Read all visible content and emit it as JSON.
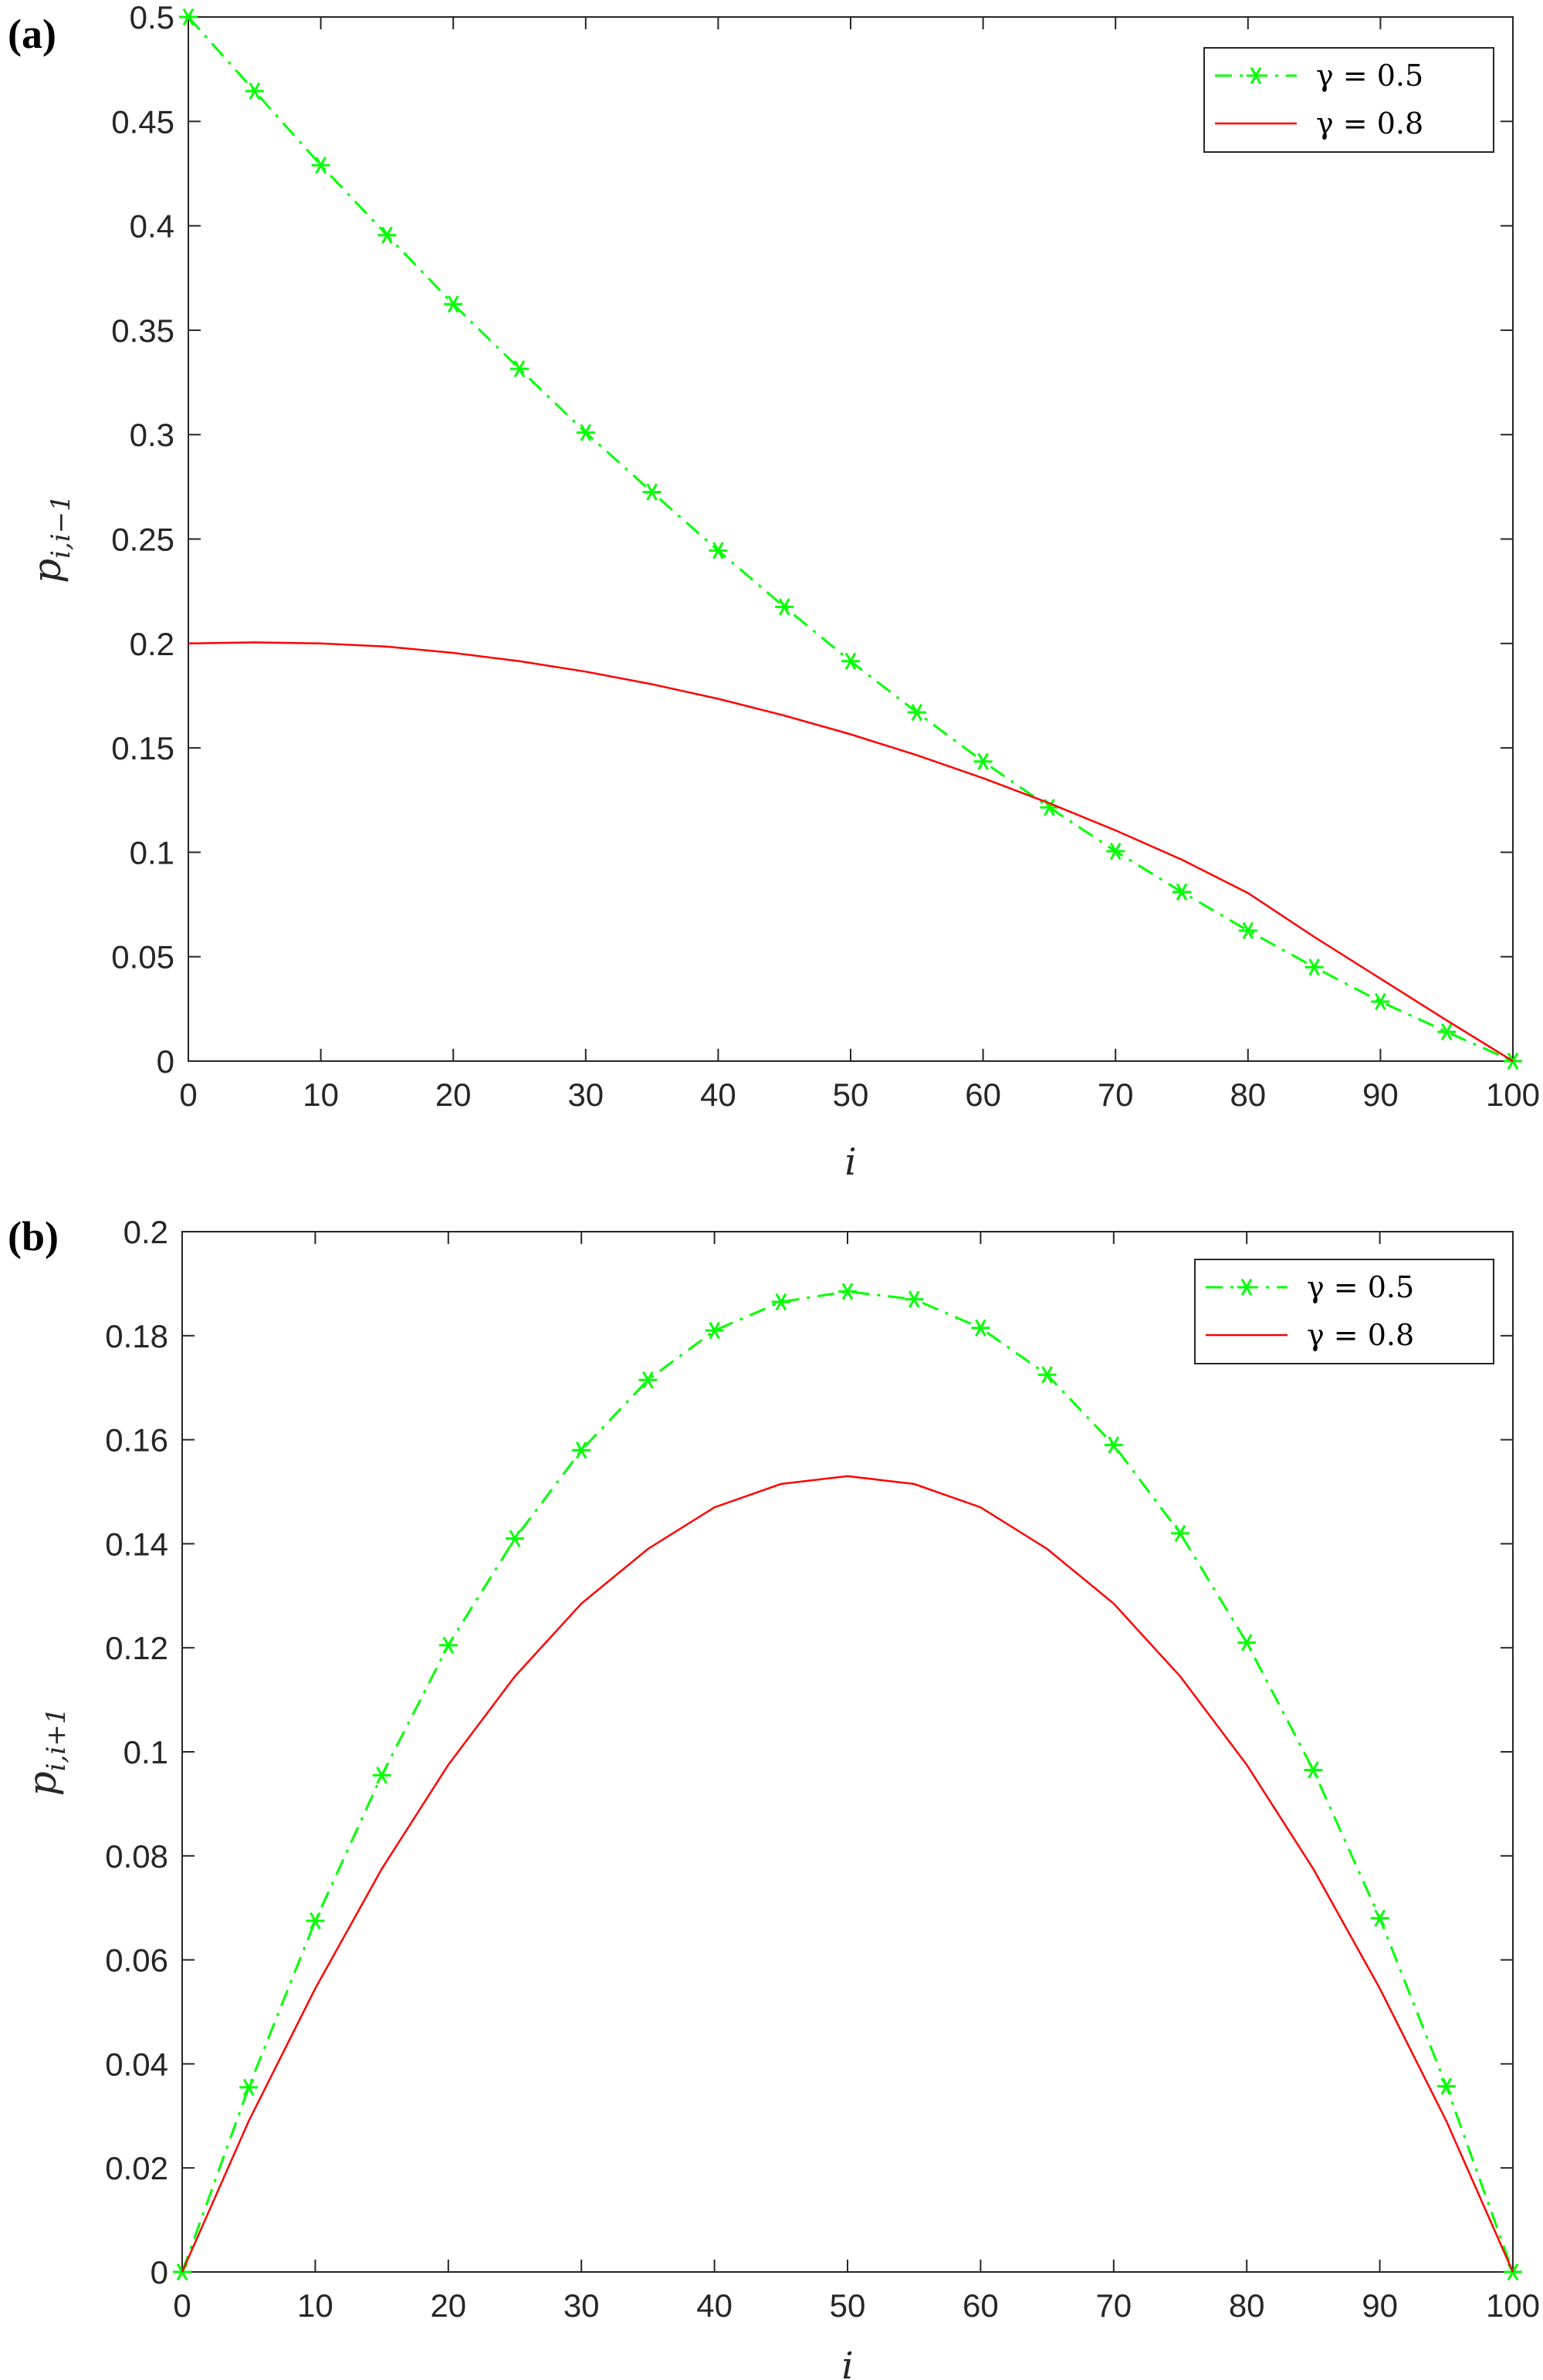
{
  "chart_data": [
    {
      "panel_label": "(a)",
      "type": "line",
      "xlabel": "i",
      "ylabel": {
        "base": "p",
        "sub": "i,i−1"
      },
      "xlim": [
        0,
        100
      ],
      "ylim": [
        0,
        0.5
      ],
      "xticks": [
        0,
        10,
        20,
        30,
        40,
        50,
        60,
        70,
        80,
        90,
        100
      ],
      "xtick_labels": [
        "0",
        "10",
        "20",
        "30",
        "40",
        "50",
        "60",
        "70",
        "80",
        "90",
        "100"
      ],
      "yticks": [
        0,
        0.05,
        0.1,
        0.15,
        0.2,
        0.25,
        0.3,
        0.35,
        0.4,
        0.45,
        0.5
      ],
      "ytick_labels": [
        "0",
        "0.05",
        "0.1",
        "0.15",
        "0.2",
        "0.25",
        "0.3",
        "0.35",
        "0.4",
        "0.45",
        "0.5"
      ],
      "grid": false,
      "legend_position": "top-right",
      "series": [
        {
          "name": "γ = 0.5",
          "color": "#00ff00",
          "style": "dash-dot with asterisk markers",
          "x": [
            0,
            5,
            10,
            15,
            20,
            25,
            30,
            35,
            40,
            45,
            50,
            55,
            60,
            65,
            70,
            75,
            80,
            85,
            90,
            95,
            100
          ],
          "y": [
            0.5,
            0.4645,
            0.429,
            0.3955,
            0.3625,
            0.3315,
            0.301,
            0.2725,
            0.2445,
            0.2175,
            0.1915,
            0.167,
            0.1435,
            0.1215,
            0.1005,
            0.081,
            0.0625,
            0.045,
            0.0285,
            0.014,
            0.0
          ]
        },
        {
          "name": "γ = 0.8",
          "color": "#ff0000",
          "style": "solid",
          "x": [
            0,
            5,
            10,
            15,
            20,
            25,
            30,
            35,
            40,
            45,
            50,
            55,
            60,
            65,
            70,
            75,
            80,
            85,
            90,
            95,
            100
          ],
          "y": [
            0.2,
            0.2005,
            0.2,
            0.1985,
            0.1955,
            0.1915,
            0.1865,
            0.1805,
            0.1735,
            0.1655,
            0.1565,
            0.1465,
            0.1355,
            0.1235,
            0.1105,
            0.0965,
            0.0805,
            0.0595,
            0.0395,
            0.0195,
            0.0
          ]
        }
      ]
    },
    {
      "panel_label": "(b)",
      "type": "line",
      "xlabel": "i",
      "ylabel": {
        "base": "p",
        "sub": "i,i+1"
      },
      "xlim": [
        0,
        100
      ],
      "ylim": [
        0,
        0.2
      ],
      "xticks": [
        0,
        10,
        20,
        30,
        40,
        50,
        60,
        70,
        80,
        90,
        100
      ],
      "xtick_labels": [
        "0",
        "10",
        "20",
        "30",
        "40",
        "50",
        "60",
        "70",
        "80",
        "90",
        "100"
      ],
      "yticks": [
        0,
        0.02,
        0.04,
        0.06,
        0.08,
        0.1,
        0.12,
        0.14,
        0.16,
        0.18,
        0.2
      ],
      "ytick_labels": [
        "0",
        "0.02",
        "0.04",
        "0.06",
        "0.08",
        "0.1",
        "0.12",
        "0.14",
        "0.16",
        "0.18",
        "0.2"
      ],
      "grid": false,
      "legend_position": "top-right",
      "series": [
        {
          "name": "γ = 0.5",
          "color": "#00ff00",
          "style": "dash-dot with asterisk markers",
          "x": [
            0,
            5,
            10,
            15,
            20,
            25,
            30,
            35,
            40,
            45,
            50,
            55,
            60,
            65,
            70,
            75,
            80,
            85,
            90,
            95,
            100
          ],
          "y": [
            0.0,
            0.0355,
            0.0675,
            0.0955,
            0.1205,
            0.141,
            0.158,
            0.1715,
            0.181,
            0.1865,
            0.1885,
            0.187,
            0.1815,
            0.1725,
            0.159,
            0.142,
            0.121,
            0.0965,
            0.068,
            0.0357,
            0.0
          ]
        },
        {
          "name": "γ = 0.8",
          "color": "#ff0000",
          "style": "solid",
          "x": [
            0,
            5,
            10,
            15,
            20,
            25,
            30,
            35,
            40,
            45,
            50,
            55,
            60,
            65,
            70,
            75,
            80,
            85,
            90,
            95,
            100
          ],
          "y": [
            0.0,
            0.029,
            0.0545,
            0.0775,
            0.0975,
            0.1145,
            0.1285,
            0.139,
            0.147,
            0.1515,
            0.153,
            0.1515,
            0.147,
            0.139,
            0.1285,
            0.1145,
            0.0975,
            0.0775,
            0.0545,
            0.029,
            0.0
          ]
        }
      ]
    }
  ]
}
